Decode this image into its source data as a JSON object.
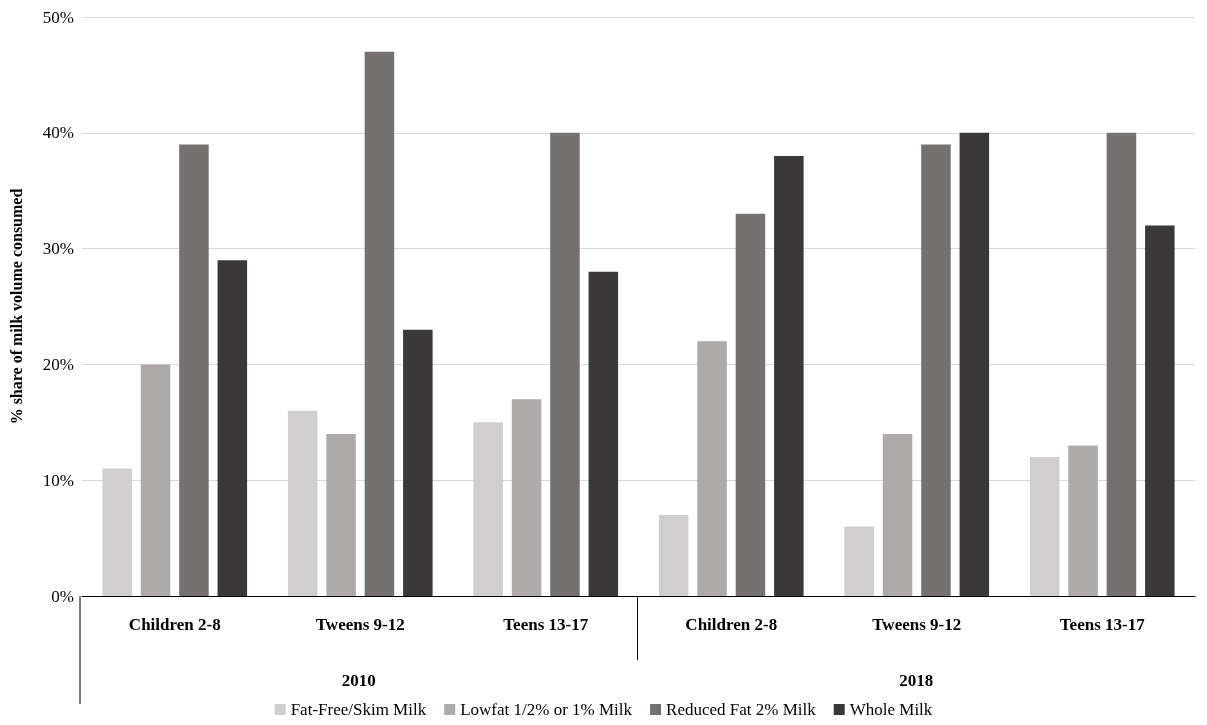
{
  "chart_data": {
    "type": "bar",
    "ylabel": "% share of milk volume consumed",
    "categories": [
      "Children 2-8",
      "Tweens 9-12",
      "Teens 13-17",
      "Children 2-8",
      "Tweens 9-12",
      "Teens 13-17"
    ],
    "annotations": [
      "2010",
      "2018"
    ],
    "series": [
      {
        "name": "Fat-Free/Skim Milk",
        "color": "#d0cecf",
        "values": [
          11,
          16,
          15,
          7,
          6,
          12
        ]
      },
      {
        "name": "Lowfat 1/2% or 1% Milk",
        "color": "#aeaaaa",
        "values": [
          20,
          14,
          17,
          22,
          14,
          13
        ]
      },
      {
        "name": "Reduced Fat 2% Milk",
        "color": "#767171",
        "values": [
          39,
          47,
          40,
          33,
          39,
          40
        ]
      },
      {
        "name": "Whole Milk",
        "color": "#3a3838",
        "values": [
          29,
          23,
          28,
          38,
          40,
          32
        ]
      }
    ],
    "ylim": [
      0,
      50
    ],
    "yticks": [
      {
        "value": 0,
        "label": "0%"
      },
      {
        "value": 10,
        "label": "10%"
      },
      {
        "value": 20,
        "label": "20%"
      },
      {
        "value": 30,
        "label": "30%"
      },
      {
        "value": 40,
        "label": "40%"
      },
      {
        "value": 50,
        "label": "50%"
      }
    ],
    "grid": "y",
    "legend": "bottom"
  }
}
